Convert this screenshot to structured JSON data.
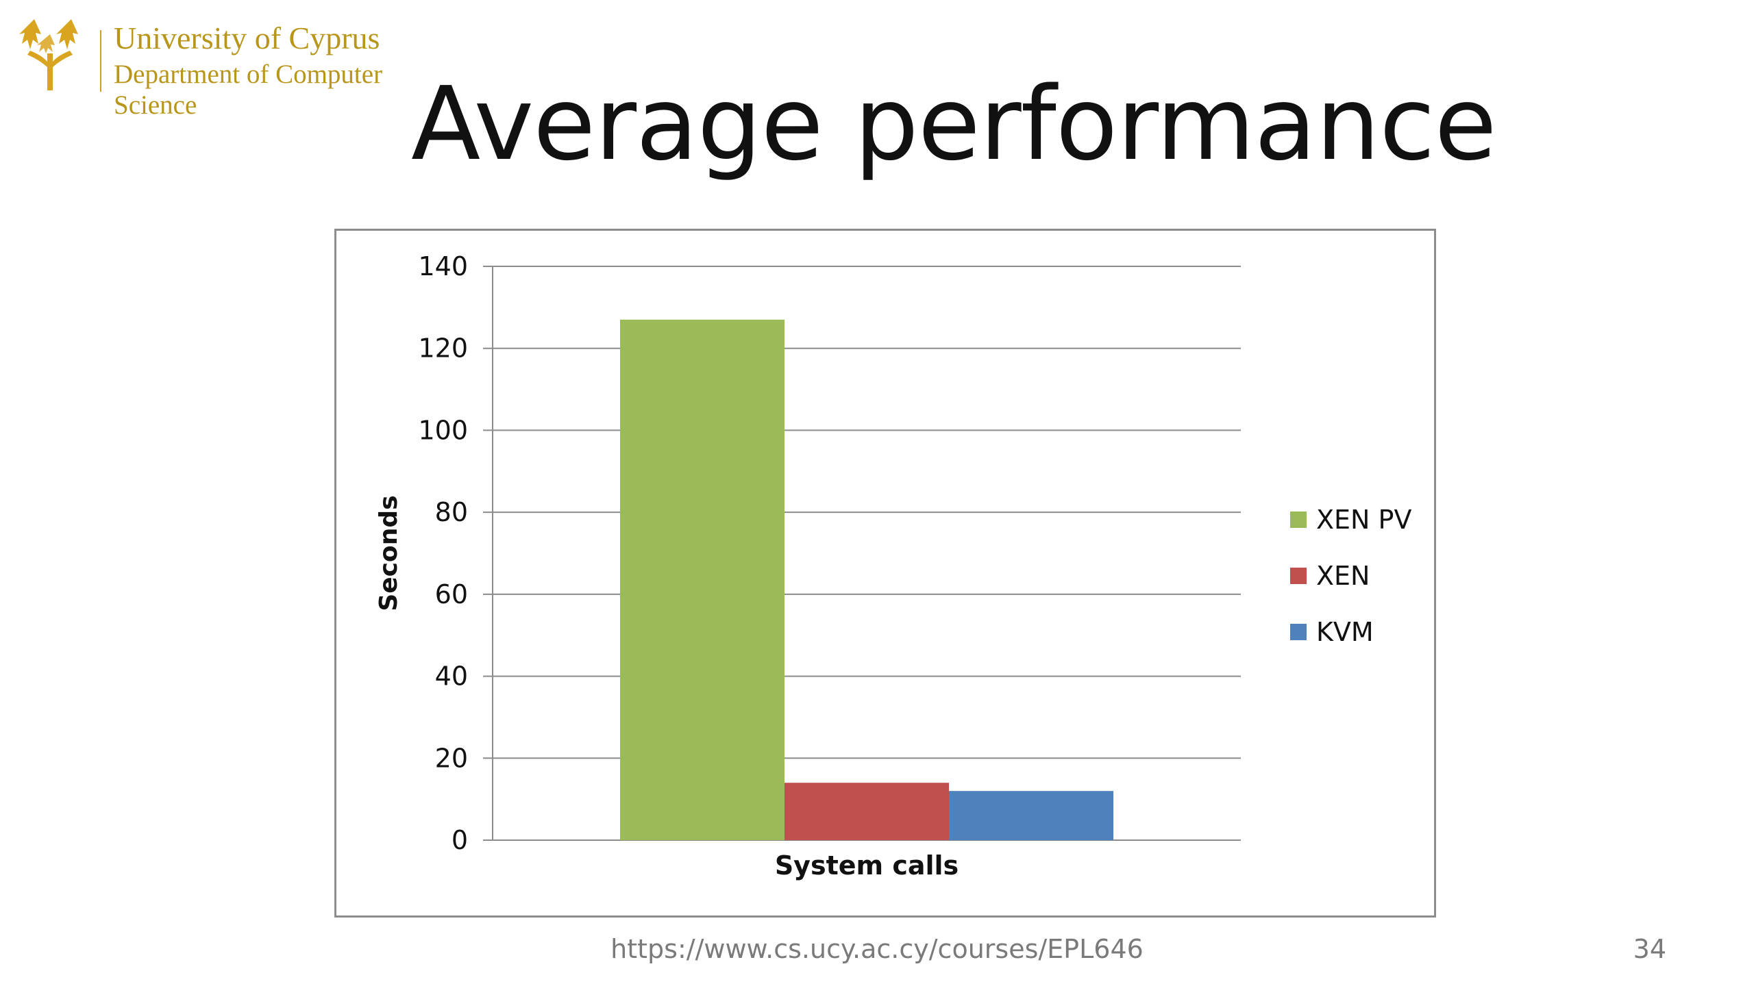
{
  "logo": {
    "line1": "University of Cyprus",
    "line2": "Department of Computer",
    "line3": "Science",
    "color": "#b8961c"
  },
  "slide": {
    "title": "Average performance",
    "footer_url": "https://www.cs.ucy.ac.cy/courses/EPL646",
    "page_number": "34"
  },
  "chart_data": {
    "type": "bar",
    "categories": [
      "System calls"
    ],
    "series": [
      {
        "name": "XEN PV",
        "values": [
          127
        ],
        "color": "#9bbb59"
      },
      {
        "name": "XEN",
        "values": [
          14
        ],
        "color": "#c0504d"
      },
      {
        "name": "KVM",
        "values": [
          12
        ],
        "color": "#4f81bd"
      }
    ],
    "title": "",
    "xlabel": "",
    "ylabel": "Seconds",
    "ylim": [
      0,
      140
    ],
    "yticks": [
      "0",
      "20",
      "40",
      "60",
      "80",
      "100",
      "120",
      "140"
    ],
    "grid": true,
    "legend_position": "right"
  }
}
